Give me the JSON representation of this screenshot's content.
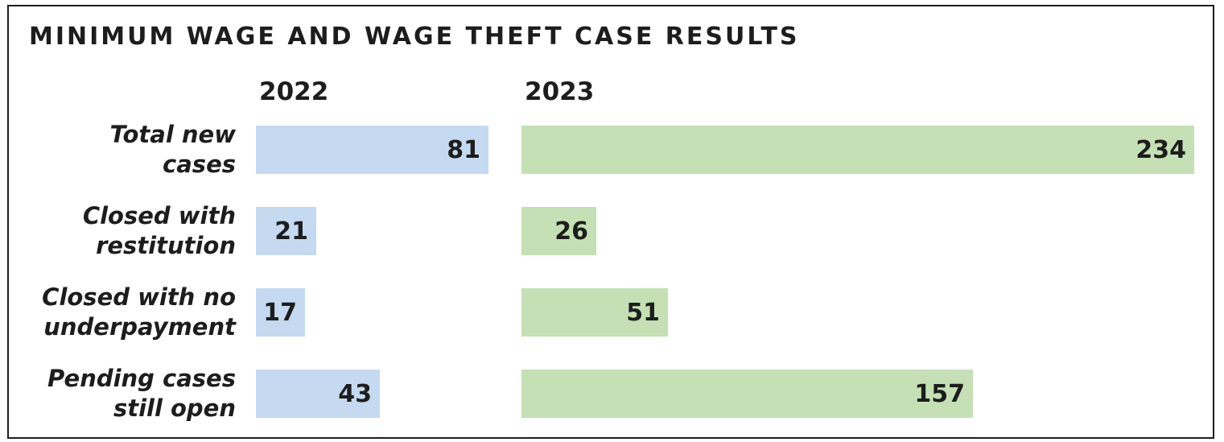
{
  "chart_data": {
    "type": "bar",
    "orientation": "horizontal",
    "title": "MINIMUM WAGE AND WAGE THEFT CASE RESULTS",
    "categories": [
      [
        "Total new",
        "cases"
      ],
      [
        "Closed with",
        "restitution"
      ],
      [
        "Closed with no",
        "underpayment"
      ],
      [
        "Pending cases",
        "still open"
      ]
    ],
    "series": [
      {
        "name": "2022",
        "color": "#c5d9f1",
        "values": [
          81,
          21,
          17,
          43
        ]
      },
      {
        "name": "2023",
        "color": "#c4e0b4",
        "values": [
          234,
          26,
          51,
          157
        ]
      }
    ],
    "grid": false,
    "legend": "none"
  }
}
